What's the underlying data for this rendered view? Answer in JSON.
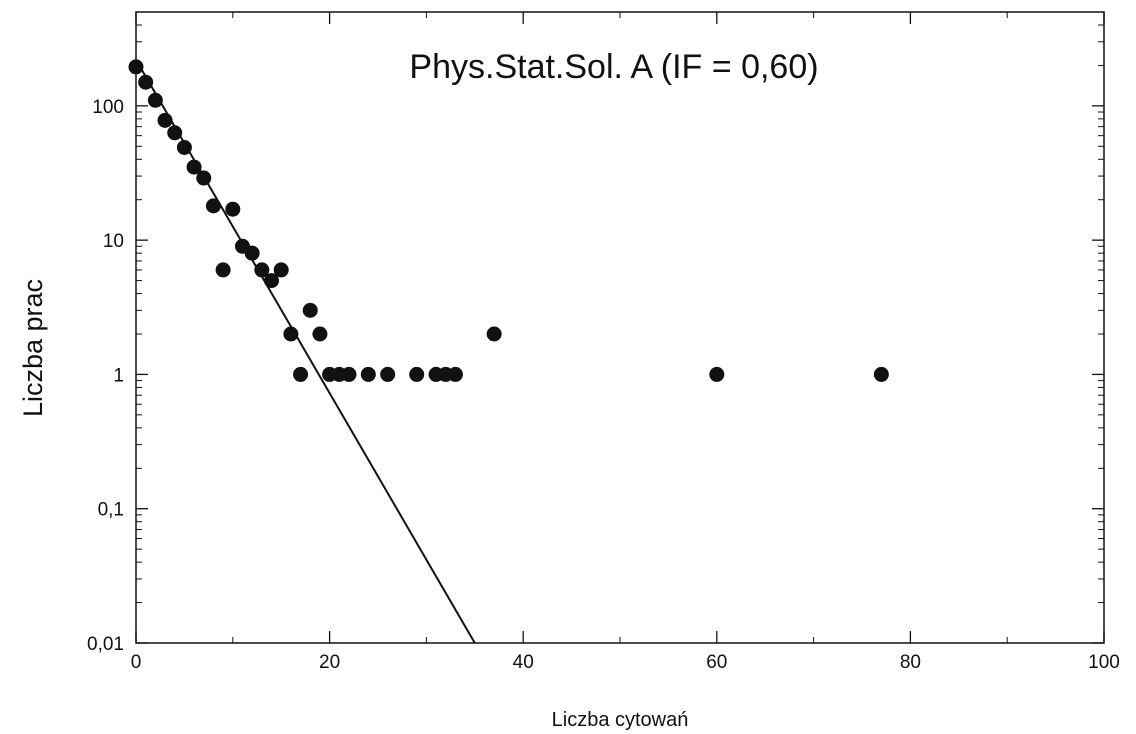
{
  "chart_data": {
    "type": "scatter",
    "title": "Phys.Stat.Sol. A (IF = 0,60)",
    "xlabel": "Liczba cytowań",
    "ylabel": "Liczba prac",
    "xlim": [
      0,
      100
    ],
    "ylim": [
      0.01,
      500
    ],
    "yscale": "log",
    "grid": false,
    "x_ticks": [
      0,
      20,
      40,
      60,
      80,
      100
    ],
    "x_tick_labels": [
      "0",
      "20",
      "40",
      "60",
      "80",
      "100"
    ],
    "y_ticks": [
      0.01,
      0.1,
      1,
      10,
      100
    ],
    "y_tick_labels": [
      "0,01",
      "0,1",
      "1",
      "10",
      "100"
    ],
    "series": [
      {
        "type": "scatter",
        "marker_color": "#111111",
        "x": [
          0,
          1,
          2,
          3,
          4,
          5,
          6,
          7,
          8,
          9,
          10,
          11,
          12,
          13,
          14,
          15,
          16,
          17,
          18,
          19,
          20,
          21,
          22,
          24,
          26,
          29,
          31,
          32,
          33,
          37,
          60,
          77
        ],
        "y": [
          195,
          150,
          110,
          78,
          63,
          49,
          35,
          29,
          18,
          6,
          17,
          9,
          8,
          6,
          5,
          6,
          2,
          1,
          3,
          2,
          1,
          1,
          1,
          1,
          1,
          1,
          1,
          1,
          1,
          2,
          1,
          1
        ]
      },
      {
        "type": "line",
        "line_color": "#111111",
        "x": [
          0,
          35
        ],
        "y": [
          220,
          0.01
        ]
      }
    ]
  }
}
